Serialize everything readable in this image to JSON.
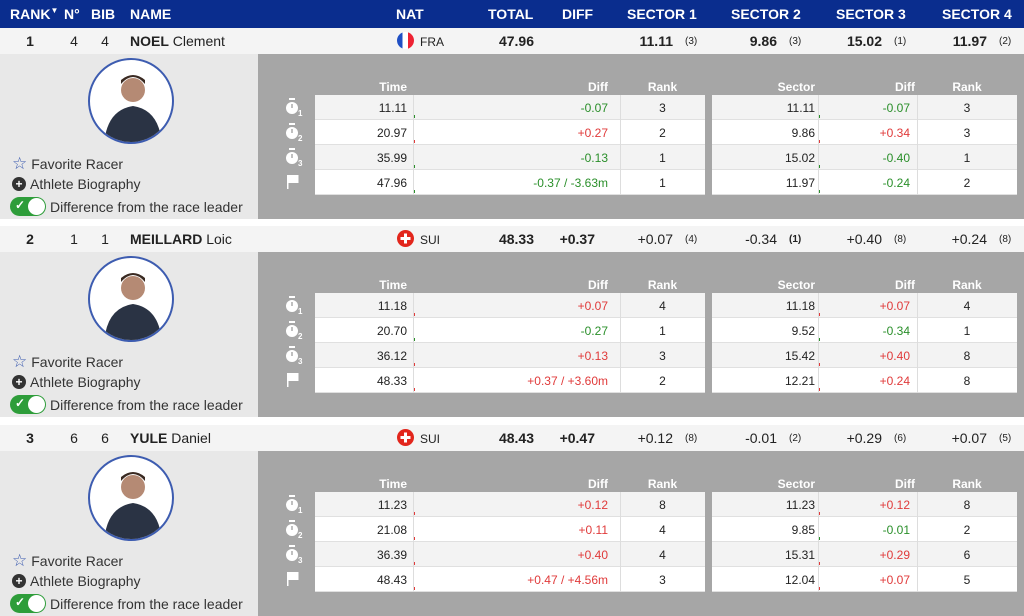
{
  "header": {
    "rank": "RANK",
    "n": "N°",
    "bib": "BIB",
    "name": "NAME",
    "nat": "NAT",
    "total": "TOTAL",
    "diff": "DIFF",
    "s1": "SECTOR 1",
    "s2": "SECTOR 2",
    "s3": "SECTOR 3",
    "s4": "SECTOR 4",
    "sort_icon": "sort-down-icon"
  },
  "labels": {
    "time": "Time",
    "diff": "Diff",
    "rank": "Rank",
    "sector": "Sector",
    "favorite": "Favorite Racer",
    "bio": "Athlete Biography",
    "toggle": "Difference from the race leader"
  },
  "colors": {
    "header": "#0a2d8e",
    "positive": "#e03a3a",
    "negative": "#2a8f2a",
    "toggle": "#2e9d3a"
  },
  "racers": [
    {
      "rank": "1",
      "n": "4",
      "bib": "4",
      "last": "NOEL",
      "first": "Clement",
      "nat": "FRA",
      "flag": "fra",
      "total": "47.96",
      "diff": "",
      "sectors": [
        {
          "v": "11.11",
          "r": "(3)",
          "bold": true
        },
        {
          "v": "9.86",
          "r": "(3)",
          "bold": true
        },
        {
          "v": "15.02",
          "r": "(1)",
          "bold": true
        },
        {
          "v": "11.97",
          "r": "(2)",
          "bold": true
        }
      ],
      "splits": [
        {
          "time": "11.11",
          "diff": "-0.07",
          "dc": "g",
          "rank": "3",
          "sector": "11.11",
          "sdiff": "-0.07",
          "sdc": "g",
          "srank": "3"
        },
        {
          "time": "20.97",
          "diff": "+0.27",
          "dc": "rd",
          "rank": "2",
          "sector": "9.86",
          "sdiff": "+0.34",
          "sdc": "rd",
          "srank": "3"
        },
        {
          "time": "35.99",
          "diff": "-0.13",
          "dc": "g",
          "rank": "1",
          "sector": "15.02",
          "sdiff": "-0.40",
          "sdc": "g",
          "srank": "1"
        },
        {
          "time": "47.96",
          "diff": "-0.37 / -3.63m",
          "dc": "g",
          "rank": "1",
          "sector": "11.97",
          "sdiff": "-0.24",
          "sdc": "g",
          "srank": "2"
        }
      ]
    },
    {
      "rank": "2",
      "n": "1",
      "bib": "1",
      "last": "MEILLARD",
      "first": "Loic",
      "nat": "SUI",
      "flag": "sui",
      "total": "48.33",
      "diff": "+0.37",
      "sectors": [
        {
          "v": "+0.07",
          "r": "(4)"
        },
        {
          "v": "-0.34",
          "r": "(1)",
          "rb": true
        },
        {
          "v": "+0.40",
          "r": "(8)"
        },
        {
          "v": "+0.24",
          "r": "(8)"
        }
      ],
      "splits": [
        {
          "time": "11.18",
          "diff": "+0.07",
          "dc": "rd",
          "rank": "4",
          "sector": "11.18",
          "sdiff": "+0.07",
          "sdc": "rd",
          "srank": "4"
        },
        {
          "time": "20.70",
          "diff": "-0.27",
          "dc": "g",
          "rank": "1",
          "sector": "9.52",
          "sdiff": "-0.34",
          "sdc": "g",
          "srank": "1"
        },
        {
          "time": "36.12",
          "diff": "+0.13",
          "dc": "rd",
          "rank": "3",
          "sector": "15.42",
          "sdiff": "+0.40",
          "sdc": "rd",
          "srank": "8"
        },
        {
          "time": "48.33",
          "diff": "+0.37 / +3.60m",
          "dc": "rd",
          "rank": "2",
          "sector": "12.21",
          "sdiff": "+0.24",
          "sdc": "rd",
          "srank": "8"
        }
      ]
    },
    {
      "rank": "3",
      "n": "6",
      "bib": "6",
      "last": "YULE",
      "first": "Daniel",
      "nat": "SUI",
      "flag": "sui",
      "total": "48.43",
      "diff": "+0.47",
      "sectors": [
        {
          "v": "+0.12",
          "r": "(8)"
        },
        {
          "v": "-0.01",
          "r": "(2)"
        },
        {
          "v": "+0.29",
          "r": "(6)"
        },
        {
          "v": "+0.07",
          "r": "(5)"
        }
      ],
      "splits": [
        {
          "time": "11.23",
          "diff": "+0.12",
          "dc": "rd",
          "rank": "8",
          "sector": "11.23",
          "sdiff": "+0.12",
          "sdc": "rd",
          "srank": "8"
        },
        {
          "time": "21.08",
          "diff": "+0.11",
          "dc": "rd",
          "rank": "4",
          "sector": "9.85",
          "sdiff": "-0.01",
          "sdc": "g",
          "srank": "2"
        },
        {
          "time": "36.39",
          "diff": "+0.40",
          "dc": "rd",
          "rank": "4",
          "sector": "15.31",
          "sdiff": "+0.29",
          "sdc": "rd",
          "srank": "6"
        },
        {
          "time": "48.43",
          "diff": "+0.47 / +4.56m",
          "dc": "rd",
          "rank": "3",
          "sector": "12.04",
          "sdiff": "+0.07",
          "sdc": "rd",
          "srank": "5"
        }
      ]
    }
  ]
}
